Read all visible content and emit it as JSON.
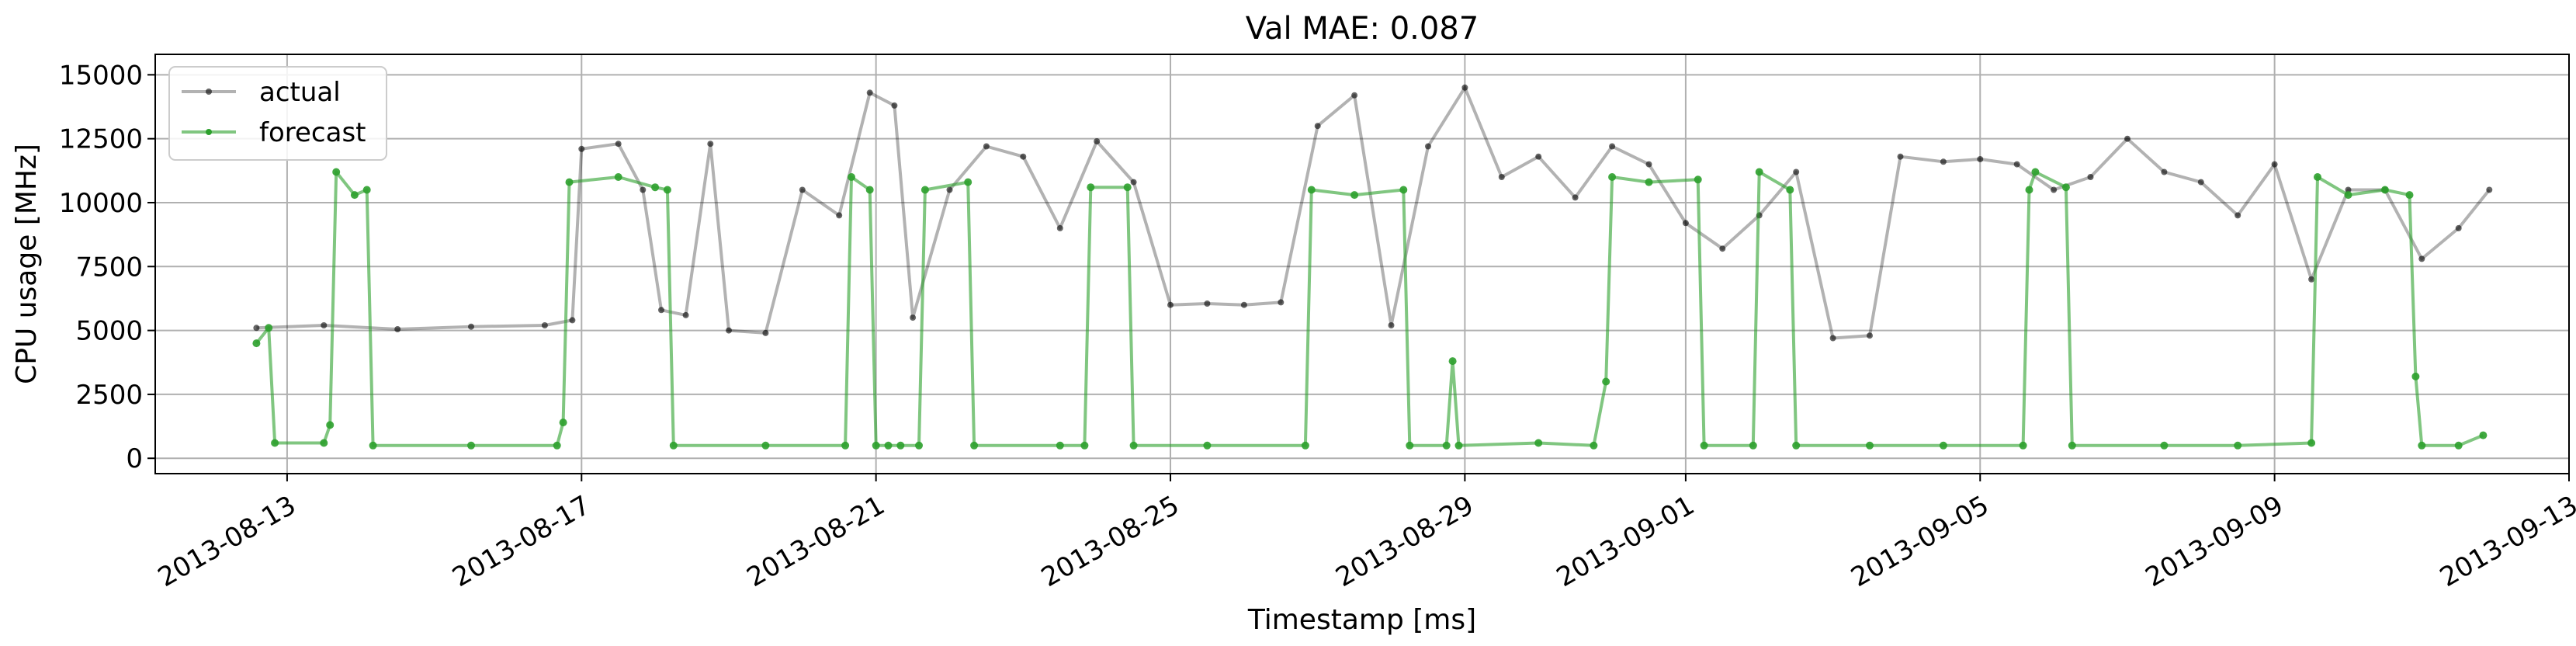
{
  "chart_data": {
    "type": "line",
    "title": "Val MAE: 0.087",
    "xlabel": "Timestamp [ms]",
    "ylabel": "CPU usage [MHz]",
    "xlim": [
      "2013-08-11T05:00",
      "2013-09-13T00:00"
    ],
    "ylim": [
      -600,
      15800
    ],
    "x_ticks": [
      "2013-08-13",
      "2013-08-17",
      "2013-08-21",
      "2013-08-25",
      "2013-08-29",
      "2013-09-01",
      "2013-09-05",
      "2013-09-09",
      "2013-09-13"
    ],
    "y_ticks": [
      0,
      2500,
      5000,
      7500,
      10000,
      12500,
      15000
    ],
    "grid": true,
    "legend_position": "top-left",
    "series": [
      {
        "name": "actual",
        "color": "#000000",
        "points": [
          [
            "2013-08-12T14:00",
            5100
          ],
          [
            "2013-08-13T12:00",
            5200
          ],
          [
            "2013-08-14T12:00",
            5050
          ],
          [
            "2013-08-15T12:00",
            5150
          ],
          [
            "2013-08-16T12:00",
            5200
          ],
          [
            "2013-08-16T21:00",
            5400
          ],
          [
            "2013-08-17T00:00",
            12100
          ],
          [
            "2013-08-17T12:00",
            12300
          ],
          [
            "2013-08-17T20:00",
            10500
          ],
          [
            "2013-08-18T02:00",
            5800
          ],
          [
            "2013-08-18T10:00",
            5600
          ],
          [
            "2013-08-18T18:00",
            12300
          ],
          [
            "2013-08-19T00:00",
            5000
          ],
          [
            "2013-08-19T12:00",
            4900
          ],
          [
            "2013-08-20T00:00",
            10500
          ],
          [
            "2013-08-20T12:00",
            9500
          ],
          [
            "2013-08-20T22:00",
            14300
          ],
          [
            "2013-08-21T06:00",
            13800
          ],
          [
            "2013-08-21T12:00",
            5500
          ],
          [
            "2013-08-22T00:00",
            10500
          ],
          [
            "2013-08-22T12:00",
            12200
          ],
          [
            "2013-08-23T00:00",
            11800
          ],
          [
            "2013-08-23T12:00",
            9000
          ],
          [
            "2013-08-24T00:00",
            12400
          ],
          [
            "2013-08-24T12:00",
            10800
          ],
          [
            "2013-08-25T00:00",
            6000
          ],
          [
            "2013-08-25T12:00",
            6050
          ],
          [
            "2013-08-26T00:00",
            6000
          ],
          [
            "2013-08-26T12:00",
            6100
          ],
          [
            "2013-08-27T00:00",
            13000
          ],
          [
            "2013-08-27T12:00",
            14200
          ],
          [
            "2013-08-28T00:00",
            5200
          ],
          [
            "2013-08-28T12:00",
            12200
          ],
          [
            "2013-08-29T00:00",
            14500
          ],
          [
            "2013-08-29T12:00",
            11000
          ],
          [
            "2013-08-30T00:00",
            11800
          ],
          [
            "2013-08-30T12:00",
            10200
          ],
          [
            "2013-08-31T00:00",
            12200
          ],
          [
            "2013-08-31T12:00",
            11500
          ],
          [
            "2013-09-01T00:00",
            9200
          ],
          [
            "2013-09-01T12:00",
            8200
          ],
          [
            "2013-09-02T00:00",
            9500
          ],
          [
            "2013-09-02T12:00",
            11200
          ],
          [
            "2013-09-03T00:00",
            4700
          ],
          [
            "2013-09-03T12:00",
            4800
          ],
          [
            "2013-09-03T22:00",
            11800
          ],
          [
            "2013-09-04T12:00",
            11600
          ],
          [
            "2013-09-05T00:00",
            11700
          ],
          [
            "2013-09-05T12:00",
            11500
          ],
          [
            "2013-09-06T00:00",
            10500
          ],
          [
            "2013-09-06T12:00",
            11000
          ],
          [
            "2013-09-07T00:00",
            12500
          ],
          [
            "2013-09-07T12:00",
            11200
          ],
          [
            "2013-09-08T00:00",
            10800
          ],
          [
            "2013-09-08T12:00",
            9500
          ],
          [
            "2013-09-09T00:00",
            11500
          ],
          [
            "2013-09-09T12:00",
            7000
          ],
          [
            "2013-09-10T00:00",
            10500
          ],
          [
            "2013-09-10T12:00",
            10500
          ],
          [
            "2013-09-11T00:00",
            7800
          ],
          [
            "2013-09-11T12:00",
            9000
          ],
          [
            "2013-09-11T22:00",
            10500
          ]
        ]
      },
      {
        "name": "forecast",
        "color": "#2ca02c",
        "points": [
          [
            "2013-08-12T14:00",
            4500
          ],
          [
            "2013-08-12T18:00",
            5100
          ],
          [
            "2013-08-12T20:00",
            600
          ],
          [
            "2013-08-13T12:00",
            600
          ],
          [
            "2013-08-13T14:00",
            1300
          ],
          [
            "2013-08-13T16:00",
            11200
          ],
          [
            "2013-08-13T22:00",
            10300
          ],
          [
            "2013-08-14T02:00",
            10500
          ],
          [
            "2013-08-14T04:00",
            500
          ],
          [
            "2013-08-15T12:00",
            500
          ],
          [
            "2013-08-16T16:00",
            500
          ],
          [
            "2013-08-16T18:00",
            1400
          ],
          [
            "2013-08-16T20:00",
            10800
          ],
          [
            "2013-08-17T12:00",
            11000
          ],
          [
            "2013-08-18T00:00",
            10600
          ],
          [
            "2013-08-18T04:00",
            10500
          ],
          [
            "2013-08-18T06:00",
            500
          ],
          [
            "2013-08-19T12:00",
            500
          ],
          [
            "2013-08-20T14:00",
            500
          ],
          [
            "2013-08-20T16:00",
            11000
          ],
          [
            "2013-08-20T22:00",
            10500
          ],
          [
            "2013-08-21T00:00",
            500
          ],
          [
            "2013-08-21T04:00",
            500
          ],
          [
            "2013-08-21T08:00",
            500
          ],
          [
            "2013-08-21T14:00",
            500
          ],
          [
            "2013-08-21T16:00",
            10500
          ],
          [
            "2013-08-22T06:00",
            10800
          ],
          [
            "2013-08-22T08:00",
            500
          ],
          [
            "2013-08-23T12:00",
            500
          ],
          [
            "2013-08-23T20:00",
            500
          ],
          [
            "2013-08-23T22:00",
            10600
          ],
          [
            "2013-08-24T10:00",
            10600
          ],
          [
            "2013-08-24T12:00",
            500
          ],
          [
            "2013-08-25T12:00",
            500
          ],
          [
            "2013-08-26T20:00",
            500
          ],
          [
            "2013-08-26T22:00",
            10500
          ],
          [
            "2013-08-27T12:00",
            10300
          ],
          [
            "2013-08-28T04:00",
            10500
          ],
          [
            "2013-08-28T06:00",
            500
          ],
          [
            "2013-08-28T18:00",
            500
          ],
          [
            "2013-08-28T20:00",
            3800
          ],
          [
            "2013-08-28T22:00",
            500
          ],
          [
            "2013-08-30T00:00",
            600
          ],
          [
            "2013-08-30T18:00",
            500
          ],
          [
            "2013-08-30T22:00",
            3000
          ],
          [
            "2013-08-31T00:00",
            11000
          ],
          [
            "2013-08-31T12:00",
            10800
          ],
          [
            "2013-09-01T04:00",
            10900
          ],
          [
            "2013-09-01T06:00",
            500
          ],
          [
            "2013-09-01T22:00",
            500
          ],
          [
            "2013-09-02T00:00",
            11200
          ],
          [
            "2013-09-02T10:00",
            10500
          ],
          [
            "2013-09-02T12:00",
            500
          ],
          [
            "2013-09-03T12:00",
            500
          ],
          [
            "2013-09-04T12:00",
            500
          ],
          [
            "2013-09-05T14:00",
            500
          ],
          [
            "2013-09-05T16:00",
            10500
          ],
          [
            "2013-09-05T18:00",
            11200
          ],
          [
            "2013-09-06T04:00",
            10600
          ],
          [
            "2013-09-06T06:00",
            500
          ],
          [
            "2013-09-07T12:00",
            500
          ],
          [
            "2013-09-08T12:00",
            500
          ],
          [
            "2013-09-09T12:00",
            600
          ],
          [
            "2013-09-09T14:00",
            11000
          ],
          [
            "2013-09-10T00:00",
            10300
          ],
          [
            "2013-09-10T12:00",
            10500
          ],
          [
            "2013-09-10T20:00",
            10300
          ],
          [
            "2013-09-10T22:00",
            3200
          ],
          [
            "2013-09-11T00:00",
            500
          ],
          [
            "2013-09-11T12:00",
            500
          ],
          [
            "2013-09-11T20:00",
            900
          ]
        ]
      }
    ]
  }
}
